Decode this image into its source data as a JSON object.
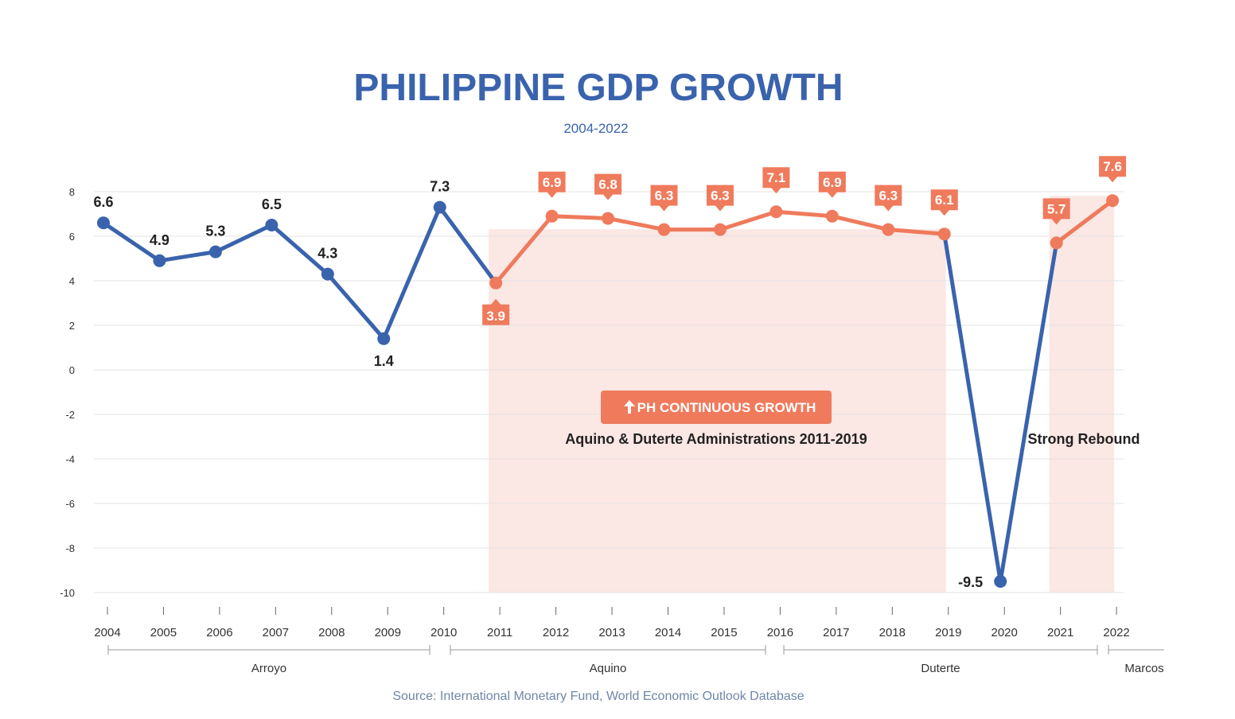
{
  "chart_data": {
    "type": "line",
    "title": "PHILIPPINE GDP GROWTH",
    "subtitle": "2004-2022",
    "source": "Source: International Monetary Fund, World Economic Outlook Database",
    "x": [
      "2004",
      "2005",
      "2006",
      "2007",
      "2008",
      "2009",
      "2010",
      "2011",
      "2012",
      "2013",
      "2014",
      "2015",
      "2016",
      "2017",
      "2018",
      "2019",
      "2020",
      "2021",
      "2022"
    ],
    "values": [
      6.6,
      4.9,
      5.3,
      6.5,
      4.3,
      1.4,
      7.3,
      3.9,
      6.9,
      6.8,
      6.3,
      6.3,
      7.1,
      6.9,
      6.3,
      6.1,
      -9.5,
      5.7,
      7.6
    ],
    "value_labels": [
      "6.6",
      "4.9",
      "5.3",
      "6.5",
      "4.3",
      "1.4",
      "7.3",
      "3.9",
      "6.9",
      "6.8",
      "6.3",
      "6.3",
      "7.1",
      "6.9",
      "6.3",
      "6.1",
      "-9.5",
      "5.7",
      "7.6"
    ],
    "highlight_indices": [
      7,
      8,
      9,
      10,
      11,
      12,
      13,
      14,
      15,
      17,
      18
    ],
    "ylim": [
      -10,
      8
    ],
    "yticks": [
      8,
      6,
      4,
      2,
      0,
      -2,
      -4,
      -6,
      -8,
      -10
    ],
    "ytick_labels": [
      "8",
      "6",
      "4",
      "2",
      "0",
      "-2",
      "-4",
      "-6",
      "-8",
      "-10"
    ],
    "grid": true,
    "shaded_periods": [
      {
        "from": "2011",
        "to": "2019"
      },
      {
        "from": "2021",
        "to": "2022"
      }
    ],
    "administrations": [
      {
        "name": "Arroyo",
        "from": "2004",
        "to": "2010"
      },
      {
        "name": "Aquino",
        "from": "2010",
        "to": "2016"
      },
      {
        "name": "Duterte",
        "from": "2016",
        "to": "2022"
      },
      {
        "name": "Marcos",
        "from": "2022",
        "to": "2022"
      }
    ],
    "annotations": {
      "badge_icon": "arrow-up-icon",
      "badge_text": "PH CONTINUOUS GROWTH",
      "period_note": "Aquino & Duterte Administrations 2011-2019",
      "rebound_note": "Strong Rebound"
    },
    "colors": {
      "blue": "#3a63ad",
      "orange": "#ef7a5c",
      "shade": "#fbe7e4",
      "grid": "#e3e3e3",
      "axis_text": "#333333",
      "source_text": "#6f86a8"
    }
  }
}
